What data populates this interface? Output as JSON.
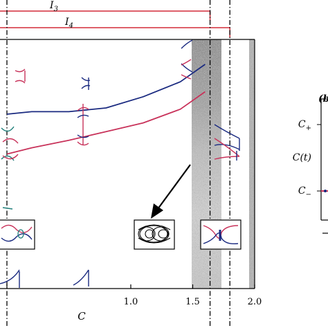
{
  "colors": {
    "red": "#c8325a",
    "blue": "#1a2a80",
    "teal": "#1f7f7a",
    "axis": "#000000",
    "bracket": "#d42b38"
  },
  "chart_data": {
    "type": "scatter",
    "title": "",
    "xlabel": "C",
    "ylabel": "",
    "xlim": [
      0.0,
      2.0
    ],
    "xticks": [
      {
        "value": 1.0,
        "label": "1.0"
      },
      {
        "value": 1.5,
        "label": "1.5"
      },
      {
        "value": 2.0,
        "label": "2.0"
      }
    ],
    "brackets": [
      {
        "label": "I",
        "sub": "3",
        "end": 1.64
      },
      {
        "label": "I",
        "sub": "4",
        "end": 1.8
      }
    ],
    "dash_dot_lines": [
      0.0,
      1.64,
      1.8
    ],
    "series": [
      {
        "color": "blue",
        "x": [
          0.0,
          0.2,
          0.5,
          0.8,
          1.1,
          1.4,
          1.6
        ],
        "y": [
          0.7,
          0.71,
          0.71,
          0.725,
          0.77,
          0.83,
          0.9
        ]
      },
      {
        "color": "red",
        "x": [
          0.0,
          0.2,
          0.5,
          0.8,
          1.1,
          1.4,
          1.6
        ],
        "y": [
          0.54,
          0.565,
          0.595,
          0.63,
          0.665,
          0.72,
          0.79
        ]
      }
    ],
    "right_panel": {
      "labels": [
        {
          "text": "C",
          "sub": "+"
        },
        {
          "text": "C(t)",
          "sub": ""
        },
        {
          "text": "C",
          "sub": "−"
        }
      ],
      "corner_label": "(b"
    }
  }
}
